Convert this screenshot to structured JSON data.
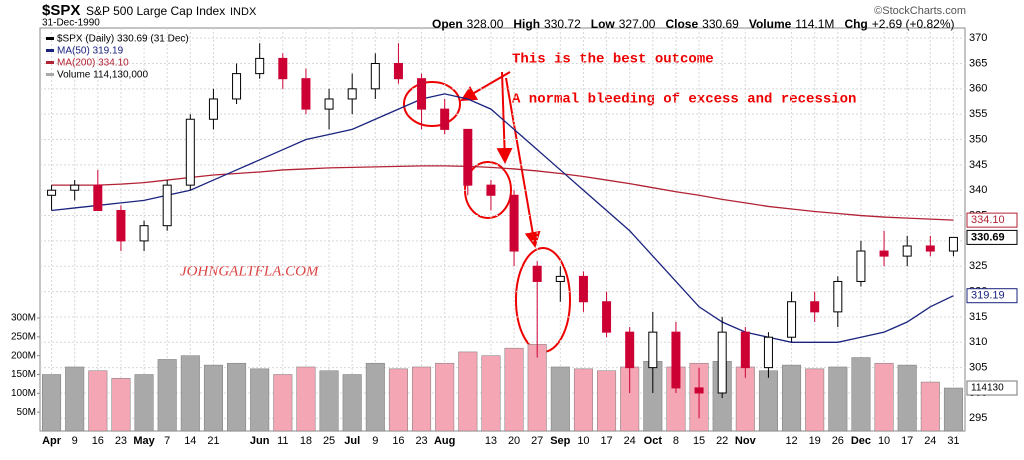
{
  "header": {
    "symbol": "$SPX",
    "name": "S&P 500 Large Cap Index",
    "exchange": "INDX",
    "date": "31-Dec-1990",
    "quote": [
      {
        "label": "Open",
        "value": "328.00"
      },
      {
        "label": "High",
        "value": "330.72"
      },
      {
        "label": "Low",
        "value": "327.00"
      },
      {
        "label": "Close",
        "value": "330.69"
      },
      {
        "label": "Volume",
        "value": "114.1M"
      },
      {
        "label": "Chg",
        "value": "+2.69 (+0.82%)"
      }
    ],
    "source": "©StockCharts.com"
  },
  "chart_data": {
    "type": "candlestick",
    "grid": true,
    "legend": [
      "$SPX (Daily) 330.69 (31 Dec)",
      "MA(50) 319.19",
      "MA(200) 334.10",
      "Volume 114,130,000"
    ],
    "categories": [
      "Apr",
      "9",
      "16",
      "23",
      "May",
      "7",
      "14",
      "21",
      null,
      "Jun",
      "11",
      "18",
      "25",
      "Jul",
      "9",
      "16",
      "23",
      "Aug",
      null,
      "13",
      "20",
      "27",
      "Sep",
      "10",
      "17",
      "24",
      "Oct",
      "8",
      "15",
      "22",
      "Nov",
      null,
      "12",
      "19",
      "26",
      "Dec",
      "10",
      "17",
      "24",
      "31"
    ],
    "open": [
      339,
      340,
      341,
      336,
      330,
      333,
      341,
      354,
      358,
      363,
      366,
      362,
      356,
      358,
      360,
      365,
      362,
      356,
      352,
      341,
      339,
      325,
      322,
      323,
      318,
      312,
      305,
      312,
      301,
      300,
      312,
      305,
      311,
      318,
      316,
      322,
      328,
      327,
      329,
      328
    ],
    "high": [
      341,
      342,
      344,
      337,
      334,
      342,
      355,
      360,
      365,
      369,
      367,
      364,
      360,
      363,
      367,
      369,
      363,
      358,
      352,
      342,
      340,
      326,
      325,
      324,
      320,
      313,
      316,
      314,
      305,
      315,
      313,
      312,
      320,
      320,
      323,
      330,
      332,
      331,
      331,
      330.72
    ],
    "low": [
      336,
      338,
      336,
      328,
      328,
      332,
      340,
      352,
      357,
      362,
      360,
      355,
      352,
      355,
      358,
      361,
      352,
      351,
      339,
      336,
      325,
      307,
      318,
      316,
      311,
      300,
      300,
      300,
      295,
      299,
      303,
      303,
      310,
      314,
      313,
      321,
      325,
      325,
      327,
      327
    ],
    "close": [
      340,
      341,
      336,
      330,
      333,
      341,
      354,
      358,
      363,
      366,
      362,
      356,
      358,
      360,
      365,
      362,
      356,
      352,
      341,
      339,
      328,
      322,
      323,
      318,
      312,
      305,
      312,
      301,
      300,
      312,
      305,
      311,
      318,
      316,
      322,
      328,
      327,
      329,
      328,
      330.69
    ],
    "up_color": "#000000",
    "down_color": "#cc0033",
    "ma50": {
      "color": "#1a237e",
      "values": [
        336,
        336.5,
        337,
        337.5,
        338,
        339,
        340,
        342,
        344,
        346,
        348,
        350,
        351,
        352,
        354,
        356,
        358,
        359,
        358,
        356,
        352,
        348,
        344,
        340,
        336,
        332,
        327,
        322,
        317,
        314,
        312,
        311,
        310,
        310,
        310,
        311,
        312,
        314,
        317,
        319.19
      ]
    },
    "ma200": {
      "color": "#b22234",
      "values": [
        341,
        341,
        341,
        341.2,
        341.5,
        342,
        342.5,
        343,
        343.3,
        343.6,
        344,
        344.2,
        344.4,
        344.5,
        344.6,
        344.7,
        344.8,
        344.8,
        344.7,
        344.5,
        344.2,
        343.8,
        343.3,
        342.7,
        342,
        341.3,
        340.5,
        339.7,
        339,
        338.2,
        337.5,
        336.8,
        336.3,
        335.8,
        335.4,
        335,
        334.7,
        334.5,
        334.3,
        334.1
      ]
    },
    "volume": {
      "values": [
        150,
        170,
        160,
        140,
        150,
        190,
        200,
        175,
        180,
        165,
        150,
        170,
        160,
        150,
        180,
        165,
        170,
        180,
        210,
        200,
        220,
        230,
        170,
        165,
        160,
        170,
        185,
        170,
        180,
        185,
        170,
        160,
        175,
        165,
        170,
        195,
        180,
        175,
        130,
        114.13
      ],
      "up_color": "#a9a9a9",
      "down_color": "#f4a6b4",
      "ylim": [
        0,
        1070
      ],
      "yticks": [
        {
          "value": 50,
          "label": "50M"
        },
        {
          "value": 100,
          "label": "100M"
        },
        {
          "value": 150,
          "label": "150M"
        },
        {
          "value": 200,
          "label": "200M"
        },
        {
          "value": 250,
          "label": "250M"
        },
        {
          "value": 300,
          "label": "300M"
        }
      ]
    },
    "ylim": [
      292.5,
      372
    ],
    "yticks": [
      295,
      300,
      305,
      310,
      315,
      320,
      325,
      330,
      335,
      340,
      345,
      350,
      355,
      360,
      365,
      370
    ],
    "price_tags": [
      {
        "label": "334.10",
        "value": 334.1,
        "color": "#b22234"
      },
      {
        "label": "330.69",
        "value": 330.69,
        "color": "#000000"
      },
      {
        "label": "319.19",
        "value": 319.19,
        "color": "#1a237e"
      }
    ],
    "volume_tag": {
      "label": "114130",
      "value": 114.13
    },
    "annotations": [
      "This is the best outcome",
      "A normal bleeding of excess and recession"
    ],
    "watermark": "JOHNGALTFLA.COM"
  }
}
